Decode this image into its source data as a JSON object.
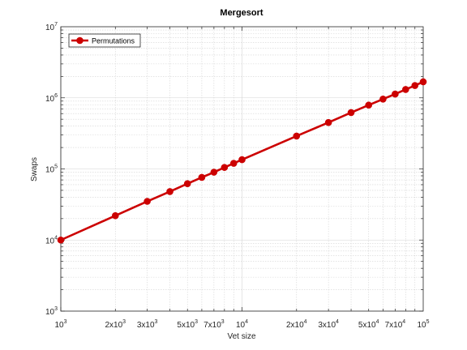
{
  "chart_data": {
    "type": "line",
    "title": "Mergesort",
    "xlabel": "Vet size",
    "ylabel": "Swaps",
    "xscale": "log",
    "yscale": "log",
    "xlim": [
      1000,
      100000
    ],
    "ylim": [
      1000,
      10000000
    ],
    "grid": true,
    "legend_position": "top-left",
    "series": [
      {
        "name": "Permutations",
        "color": "#cc0000",
        "x": [
          1000,
          2000,
          3000,
          4000,
          5000,
          6000,
          7000,
          8000,
          9000,
          10000,
          20000,
          30000,
          40000,
          50000,
          60000,
          70000,
          80000,
          90000,
          100000
        ],
        "y": [
          10000,
          22000,
          35000,
          48000,
          62000,
          76000,
          90000,
          105000,
          120000,
          135000,
          290000,
          450000,
          620000,
          790000,
          960000,
          1130000,
          1310000,
          1490000,
          1680000
        ]
      }
    ],
    "x_ticks": [
      {
        "value": 1000,
        "base": "10",
        "exp": "3"
      },
      {
        "value": 2000,
        "base": "2x10",
        "exp": "3"
      },
      {
        "value": 3000,
        "base": "3x10",
        "exp": "3"
      },
      {
        "value": 5000,
        "base": "5x10",
        "exp": "3"
      },
      {
        "value": 7000,
        "base": "7x10",
        "exp": "3"
      },
      {
        "value": 10000,
        "base": "10",
        "exp": "4"
      },
      {
        "value": 20000,
        "base": "2x10",
        "exp": "4"
      },
      {
        "value": 30000,
        "base": "3x10",
        "exp": "4"
      },
      {
        "value": 50000,
        "base": "5x10",
        "exp": "4"
      },
      {
        "value": 70000,
        "base": "7x10",
        "exp": "4"
      },
      {
        "value": 100000,
        "base": "10",
        "exp": "5"
      }
    ],
    "y_ticks": [
      {
        "value": 1000,
        "base": "10",
        "exp": "3"
      },
      {
        "value": 10000,
        "base": "10",
        "exp": "4"
      },
      {
        "value": 100000,
        "base": "10",
        "exp": "5"
      },
      {
        "value": 1000000,
        "base": "10",
        "exp": "6"
      },
      {
        "value": 10000000,
        "base": "10",
        "exp": "7"
      }
    ]
  }
}
